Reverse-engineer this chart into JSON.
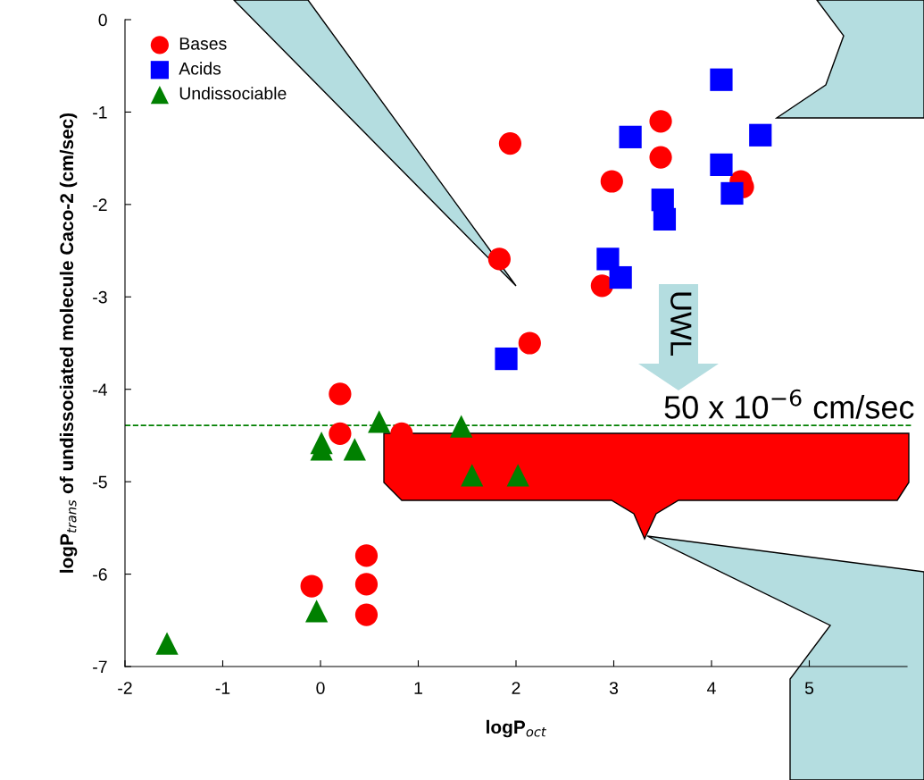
{
  "chart_data": {
    "type": "scatter",
    "xlabel": "logP$_{oct}$",
    "ylabel": "logP$_{trans}$ of undissociated molecule Caco-2 (cm/sec)",
    "xlim": [
      -2,
      6
    ],
    "ylim": [
      -7,
      0
    ],
    "xticks": [
      -2,
      -1,
      0,
      1,
      2,
      3,
      4,
      5
    ],
    "yticks": [
      -7,
      -6,
      -5,
      -4,
      -3,
      -2,
      -1,
      0
    ],
    "grid": false,
    "legend": "top left",
    "series": [
      {
        "name": "Bases",
        "color": "#ff0000",
        "marker": "circle",
        "x": [
          1.83,
          1.94,
          2.98,
          3.48,
          3.48,
          2.88,
          2.14,
          4.3,
          4.32,
          0.2,
          0.2,
          0.83,
          0.47,
          0.47,
          0.47,
          -0.09
        ],
        "values": [
          -2.59,
          -1.34,
          -1.75,
          -1.1,
          -1.49,
          -2.88,
          -3.5,
          -1.75,
          -1.81,
          -4.05,
          -4.48,
          -4.48,
          -5.8,
          -6.11,
          -6.44,
          -6.13
        ]
      },
      {
        "name": "Acids",
        "color": "#0000ff",
        "marker": "square",
        "x": [
          4.1,
          3.17,
          4.5,
          4.1,
          4.21,
          3.5,
          3.52,
          2.94,
          3.07,
          1.9
        ],
        "values": [
          -0.65,
          -1.27,
          -1.25,
          -1.57,
          -1.88,
          -1.95,
          -2.16,
          -2.59,
          -2.79,
          -3.67
        ]
      },
      {
        "name": "Undissociable",
        "color": "#008000",
        "marker": "triangle",
        "x": [
          -1.57,
          -0.04,
          0.01,
          0.01,
          0.35,
          0.6,
          1.44,
          1.55,
          2.02
        ],
        "values": [
          -6.75,
          -6.4,
          -4.58,
          -4.65,
          -4.65,
          -4.35,
          -4.4,
          -4.93,
          -4.93
        ]
      }
    ],
    "ref_lines": [
      {
        "axis": "y",
        "value": -4.39,
        "label": "50 x 10$^{−6}$ cm/sec",
        "color": "#008000",
        "line_style": "dashed"
      }
    ],
    "annotations": [
      "UWL"
    ]
  }
}
